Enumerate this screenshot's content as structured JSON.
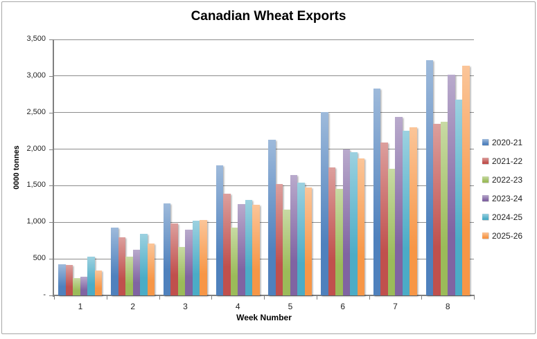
{
  "window": {
    "background": "#FFFFFF",
    "frame_border_color": "#A6A6A6"
  },
  "chart_data": {
    "type": "bar",
    "title": "Canadian Wheat Exports",
    "xlabel": "Week Number",
    "ylabel": "0000 tonnes",
    "categories": [
      "1",
      "2",
      "3",
      "4",
      "5",
      "6",
      "7",
      "8"
    ],
    "series": [
      {
        "name": "2020-21",
        "color": "#4F81BD",
        "color_light": "#9EBADB",
        "values": [
          430,
          930,
          1260,
          1780,
          2130,
          2510,
          2830,
          3220
        ]
      },
      {
        "name": "2021-22",
        "color": "#C0504D",
        "color_light": "#DC9F9D",
        "values": [
          420,
          790,
          980,
          1390,
          1520,
          1750,
          2090,
          2350
        ]
      },
      {
        "name": "2022-23",
        "color": "#9BBB59",
        "color_light": "#C8DAA4",
        "values": [
          240,
          530,
          660,
          930,
          1170,
          1460,
          1730,
          2370
        ]
      },
      {
        "name": "2023-24",
        "color": "#8064A2",
        "color_light": "#B9AACC",
        "values": [
          260,
          620,
          900,
          1250,
          1650,
          2000,
          2440,
          3020
        ]
      },
      {
        "name": "2024-25",
        "color": "#4BACC6",
        "color_light": "#9CD1E0",
        "values": [
          530,
          840,
          1020,
          1310,
          1540,
          1960,
          2250,
          2680
        ]
      },
      {
        "name": "2025-26",
        "color": "#F79646",
        "color_light": "#FBC599",
        "values": [
          340,
          710,
          1030,
          1240,
          1480,
          1870,
          2300,
          3140
        ]
      }
    ],
    "ylim": [
      0,
      3500
    ],
    "ytick_step": 500,
    "ytick_labels": [
      "-",
      "500",
      "1,000",
      "1,500",
      "2,000",
      "2,500",
      "3,000",
      "3,500"
    ],
    "grid": true,
    "grid_color": "#8C8C8C",
    "axis_color": "#7F7F7F",
    "legend_position": "right"
  }
}
